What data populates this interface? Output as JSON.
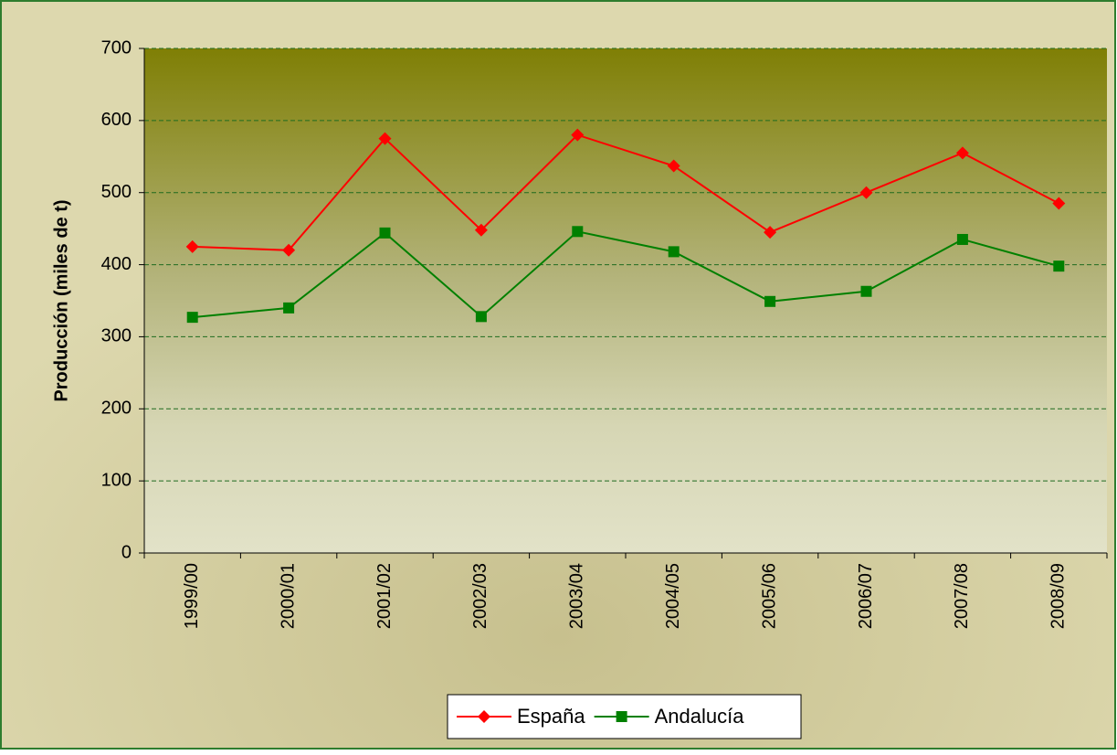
{
  "chart_data": {
    "type": "line",
    "y_label": "Producción (miles de t)",
    "categories": [
      "1999/00",
      "2000/01",
      "2001/02",
      "2002/03",
      "2003/04",
      "2004/05",
      "2005/06",
      "2006/07",
      "2007/08",
      "2008/09"
    ],
    "series": [
      {
        "name": "España",
        "color": "#ff0000",
        "marker": "diamond",
        "values": [
          425,
          420,
          575,
          448,
          580,
          537,
          445,
          500,
          555,
          485
        ]
      },
      {
        "name": "Andalucía",
        "color": "#008000",
        "marker": "square",
        "values": [
          327,
          340,
          444,
          328,
          446,
          418,
          349,
          363,
          435,
          398
        ]
      }
    ],
    "ylim": [
      0,
      700
    ],
    "yticks": [
      0,
      100,
      200,
      300,
      400,
      500,
      600,
      700
    ],
    "grid": true
  }
}
